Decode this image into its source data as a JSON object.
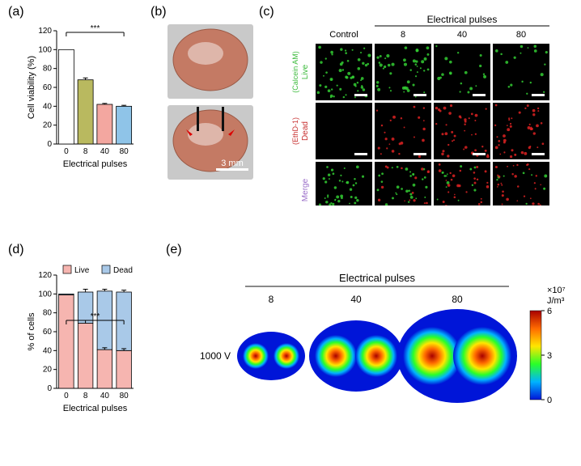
{
  "labels": {
    "a": "(a)",
    "b": "(b)",
    "c": "(c)",
    "d": "(d)",
    "e": "(e)"
  },
  "panel_a": {
    "type": "bar",
    "title_fontsize": 12,
    "ylabel": "Cell viability (%)",
    "xlabel": "Electrical pulses",
    "categories": [
      "0",
      "8",
      "40",
      "80"
    ],
    "values": [
      100,
      68,
      42,
      40
    ],
    "errors": [
      0,
      2,
      1,
      1
    ],
    "bar_colors": [
      "#ffffff",
      "#b9b95f",
      "#f3a7a0",
      "#8fc4e8"
    ],
    "bar_border": "#000000",
    "ylim": [
      0,
      120
    ],
    "ytick_step": 20,
    "axis_color": "#000000",
    "axis_fontsize": 10,
    "label_fontsize": 11,
    "sig_label": "***",
    "bar_width": 0.8
  },
  "panel_b": {
    "type": "photo",
    "scale_label": "3 mm",
    "scale_color": "#ffffff",
    "scale_fontsize": 11
  },
  "panel_c": {
    "type": "micrograph-grid",
    "header": "Electrical pulses",
    "col_labels": [
      "Control",
      "8",
      "40",
      "80"
    ],
    "row_labels": [
      {
        "top": "Live",
        "bottom": "(Calcein AM)",
        "color": "#3dbb3d"
      },
      {
        "top": "Dead",
        "bottom": "(EthD-1)",
        "color": "#c83232"
      },
      {
        "top": "Merge",
        "bottom": "",
        "color": "#9b6fc9"
      }
    ],
    "header_fontsize": 12,
    "col_fontsize": 11,
    "row_fontsize": 10,
    "green": "#33cc33",
    "red": "#dd2222",
    "bg": "#000000",
    "scale_bar_color": "#ffffff"
  },
  "panel_d": {
    "type": "stacked-bar",
    "ylabel": "% of cells",
    "xlabel": "Electrical pulses",
    "categories": [
      "0",
      "8",
      "40",
      "80"
    ],
    "live_values": [
      99,
      69,
      41,
      40
    ],
    "dead_values": [
      1,
      33,
      62,
      62
    ],
    "live_errors": [
      0,
      3,
      2,
      2
    ],
    "dead_errors": [
      0,
      3,
      2,
      2
    ],
    "live_color": "#f6b5b0",
    "dead_color": "#a9c9e8",
    "border": "#000000",
    "ylim": [
      0,
      120
    ],
    "ytick_step": 20,
    "axis_fontsize": 10,
    "label_fontsize": 11,
    "sig_label": "***",
    "legend": [
      {
        "label": "Live",
        "color": "#f6b5b0"
      },
      {
        "label": "Dead",
        "color": "#a9c9e8"
      }
    ]
  },
  "panel_e": {
    "type": "simulation",
    "header": "Electrical pulses",
    "col_labels": [
      "8",
      "40",
      "80"
    ],
    "row_label": "1000 V",
    "header_fontsize": 13,
    "label_fontsize": 12,
    "colorbar_unit": "×10⁷\nJ/m³",
    "colorbar_ticks": [
      "6",
      "3",
      "0"
    ],
    "colorbar_fontsize": 11,
    "field_bg": "#0015d8",
    "hot_colors": [
      "#a80000",
      "#ff6a00",
      "#ffe600",
      "#29ff29",
      "#00b3ff",
      "#0015d8"
    ]
  }
}
